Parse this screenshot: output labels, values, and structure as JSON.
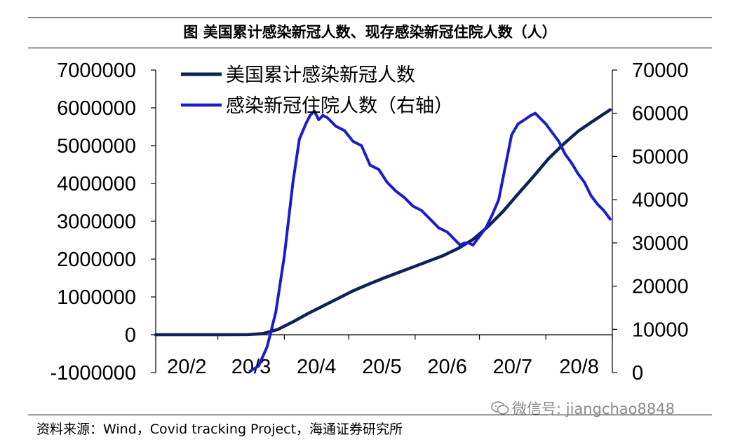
{
  "header": {
    "title": "图  美国累计感染新冠人数、现存感染新冠住院人数（人）"
  },
  "footer": {
    "source": "资料来源：Wind，Covid tracking Project，海通证券研究所",
    "watermark": "微信号: jiangchao8848",
    "watermark_icon": "wechat-icon"
  },
  "chart_data": {
    "type": "line",
    "title": "",
    "xlabel": "",
    "ylabel": "",
    "x_tick_labels": [
      "20/2",
      "20/3",
      "20/4",
      "20/5",
      "20/6",
      "20/7",
      "20/8"
    ],
    "x_tick_dates": [
      "2020-02-01",
      "2020-03-01",
      "2020-04-01",
      "2020-05-01",
      "2020-06-01",
      "2020-07-01",
      "2020-08-01"
    ],
    "x_range": [
      "2020-02-01",
      "2020-09-01"
    ],
    "y_left": {
      "min": -1000000,
      "max": 7000000,
      "ticks": [
        7000000,
        6000000,
        5000000,
        4000000,
        3000000,
        2000000,
        1000000,
        0,
        -1000000
      ],
      "tick_labels": [
        "7000000",
        "6000000",
        "5000000",
        "4000000",
        "3000000",
        "2000000",
        "1000000",
        "0",
        "-1000000"
      ]
    },
    "y_right": {
      "min": 0,
      "max": 70000,
      "ticks": [
        70000,
        60000,
        50000,
        40000,
        30000,
        20000,
        10000,
        0
      ],
      "tick_labels": [
        "70000",
        "60000",
        "50000",
        "40000",
        "30000",
        "20000",
        "10000",
        "0"
      ]
    },
    "grid": false,
    "legend_position": "top-left",
    "series": [
      {
        "name": "美国累计感染新冠人数",
        "axis": "left",
        "color": "#0f2257",
        "points": [
          [
            "2020-02-01",
            0
          ],
          [
            "2020-03-01",
            0
          ],
          [
            "2020-03-15",
            2000
          ],
          [
            "2020-03-22",
            30000
          ],
          [
            "2020-03-29",
            140000
          ],
          [
            "2020-04-05",
            340000
          ],
          [
            "2020-04-12",
            560000
          ],
          [
            "2020-04-19",
            760000
          ],
          [
            "2020-04-26",
            960000
          ],
          [
            "2020-05-03",
            1160000
          ],
          [
            "2020-05-10",
            1330000
          ],
          [
            "2020-05-17",
            1490000
          ],
          [
            "2020-05-24",
            1640000
          ],
          [
            "2020-05-31",
            1790000
          ],
          [
            "2020-06-07",
            1940000
          ],
          [
            "2020-06-14",
            2090000
          ],
          [
            "2020-06-21",
            2280000
          ],
          [
            "2020-06-28",
            2520000
          ],
          [
            "2020-07-05",
            2860000
          ],
          [
            "2020-07-12",
            3260000
          ],
          [
            "2020-07-19",
            3720000
          ],
          [
            "2020-07-26",
            4170000
          ],
          [
            "2020-08-02",
            4640000
          ],
          [
            "2020-08-09",
            5030000
          ],
          [
            "2020-08-16",
            5380000
          ],
          [
            "2020-08-23",
            5650000
          ],
          [
            "2020-08-31",
            5950000
          ]
        ]
      },
      {
        "name": "感染新冠住院人数（右轴）",
        "axis": "right",
        "color": "#1c1ccc",
        "points": [
          [
            "2020-03-16",
            300
          ],
          [
            "2020-03-20",
            1500
          ],
          [
            "2020-03-24",
            6000
          ],
          [
            "2020-03-28",
            14000
          ],
          [
            "2020-04-01",
            27000
          ],
          [
            "2020-04-05",
            44000
          ],
          [
            "2020-04-08",
            54000
          ],
          [
            "2020-04-11",
            57500
          ],
          [
            "2020-04-13",
            59500
          ],
          [
            "2020-04-15",
            60500
          ],
          [
            "2020-04-17",
            58500
          ],
          [
            "2020-04-19",
            59500
          ],
          [
            "2020-04-21",
            59000
          ],
          [
            "2020-04-25",
            57000
          ],
          [
            "2020-04-29",
            56000
          ],
          [
            "2020-05-03",
            53500
          ],
          [
            "2020-05-07",
            52500
          ],
          [
            "2020-05-11",
            48000
          ],
          [
            "2020-05-15",
            47000
          ],
          [
            "2020-05-19",
            44000
          ],
          [
            "2020-05-23",
            42000
          ],
          [
            "2020-05-27",
            40500
          ],
          [
            "2020-05-31",
            38500
          ],
          [
            "2020-06-04",
            37500
          ],
          [
            "2020-06-08",
            35500
          ],
          [
            "2020-06-12",
            33500
          ],
          [
            "2020-06-16",
            32500
          ],
          [
            "2020-06-20",
            30500
          ],
          [
            "2020-06-22",
            29500
          ],
          [
            "2020-06-24",
            30000
          ],
          [
            "2020-06-26",
            30000
          ],
          [
            "2020-06-28",
            29500
          ],
          [
            "2020-07-01",
            31500
          ],
          [
            "2020-07-04",
            33500
          ],
          [
            "2020-07-07",
            36500
          ],
          [
            "2020-07-10",
            40000
          ],
          [
            "2020-07-13",
            47500
          ],
          [
            "2020-07-16",
            55000
          ],
          [
            "2020-07-19",
            57500
          ],
          [
            "2020-07-22",
            58500
          ],
          [
            "2020-07-25",
            59500
          ],
          [
            "2020-07-27",
            60000
          ],
          [
            "2020-07-29",
            59000
          ],
          [
            "2020-08-01",
            57500
          ],
          [
            "2020-08-04",
            55500
          ],
          [
            "2020-08-07",
            53500
          ],
          [
            "2020-08-10",
            50500
          ],
          [
            "2020-08-13",
            48500
          ],
          [
            "2020-08-16",
            46000
          ],
          [
            "2020-08-19",
            44000
          ],
          [
            "2020-08-22",
            41000
          ],
          [
            "2020-08-25",
            39000
          ],
          [
            "2020-08-28",
            37500
          ],
          [
            "2020-08-31",
            35500
          ]
        ]
      }
    ]
  }
}
